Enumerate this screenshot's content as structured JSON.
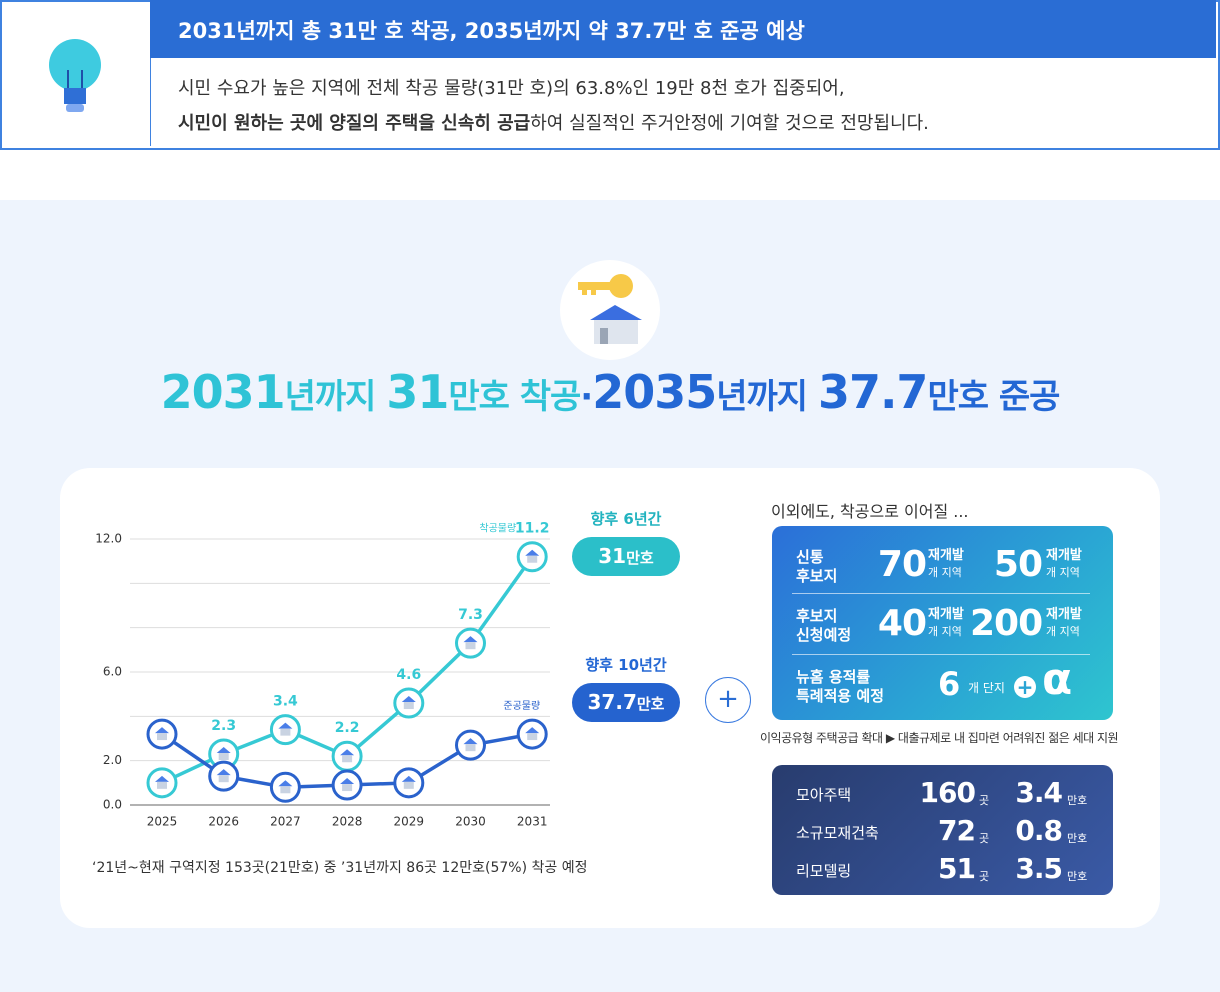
{
  "header": {
    "title": "2031년까지 총 31만 호 착공, 2035년까지 약 37.7만 호 준공 예상",
    "line1": "시민 수요가 높은 지역에 전체 착공 물량(31만 호)의 63.8%인 19만 8천 호가 집중되어,",
    "line2_bold": "시민이 원하는 곳에 양질의 주택을 신속히 공급",
    "line2_rest": "하여 실질적인 주거안정에 기여할 것으로 전망됩니다."
  },
  "headline": {
    "parts": [
      "2031",
      "년까지 ",
      "31",
      "만호 착공",
      "·",
      "2035",
      "년까지 ",
      "37.7",
      "만호 준공"
    ]
  },
  "chart_data": {
    "type": "line",
    "categories": [
      "2025",
      "2026",
      "2027",
      "2028",
      "2029",
      "2030",
      "2031"
    ],
    "series": [
      {
        "name": "착공물량",
        "color": "#36c9d4",
        "values": [
          1.0,
          2.3,
          3.4,
          2.2,
          4.6,
          7.3,
          11.2
        ],
        "value_labels": [
          null,
          "2.3",
          "3.4",
          "2.2",
          "4.6",
          "7.3",
          "11.2"
        ]
      },
      {
        "name": "준공물량",
        "color": "#2a62cc",
        "values": [
          3.2,
          1.3,
          0.8,
          0.9,
          1.0,
          2.7,
          3.2
        ]
      }
    ],
    "ylim": [
      0,
      12
    ],
    "yticks": [
      {
        "value": 0,
        "label": "0.0"
      },
      {
        "value": 2,
        "label": "2.0"
      },
      {
        "value": 4,
        "label": null
      },
      {
        "value": 6,
        "label": "6.0"
      },
      {
        "value": 8,
        "label": null
      },
      {
        "value": 10,
        "label": null
      },
      {
        "value": 12,
        "label": "12.0"
      }
    ],
    "grid": true
  },
  "badges": [
    {
      "period": "향후 6년간",
      "amount": "31",
      "unit": "만호"
    },
    {
      "period": "향후 10년간",
      "amount": "37.7",
      "unit": "만호"
    }
  ],
  "footnote": "‘21년~현재 구역지정 153곳(21만호) 중 ’31년까지 86곳 12만호(57%) 착공 예정",
  "pipeline": {
    "intro": "이외에도, 착공으로 이어질 ...",
    "rows": [
      {
        "label": [
          "신통",
          "후보지"
        ],
        "items": [
          {
            "number": "70",
            "top": "재개발",
            "bottom": "개 지역"
          },
          {
            "number": "50",
            "top": "재개발",
            "bottom": "개 지역"
          }
        ]
      },
      {
        "label": [
          "후보지",
          "신청예정"
        ],
        "items": [
          {
            "number": "40",
            "top": "재개발",
            "bottom": "개 지역"
          },
          {
            "number": "200",
            "top": "재개발",
            "bottom": "개 지역"
          }
        ]
      },
      {
        "label": [
          "뉴홈 용적률",
          "특례적용 예정"
        ],
        "number": "6",
        "unit": "개 단지",
        "extra": "α"
      }
    ],
    "note": "이익공유형 주택공급 확대 ▶ 대출규제로 내 집마련 어려워진 젊은 세대 지원"
  },
  "table": {
    "rows": [
      [
        "모아주택",
        "160",
        "곳",
        "3.4",
        "만호"
      ],
      [
        "소규모재건축",
        "72",
        "곳",
        "0.8",
        "만호"
      ],
      [
        "리모델링",
        "51",
        "곳",
        "3.5",
        "만호"
      ]
    ]
  }
}
